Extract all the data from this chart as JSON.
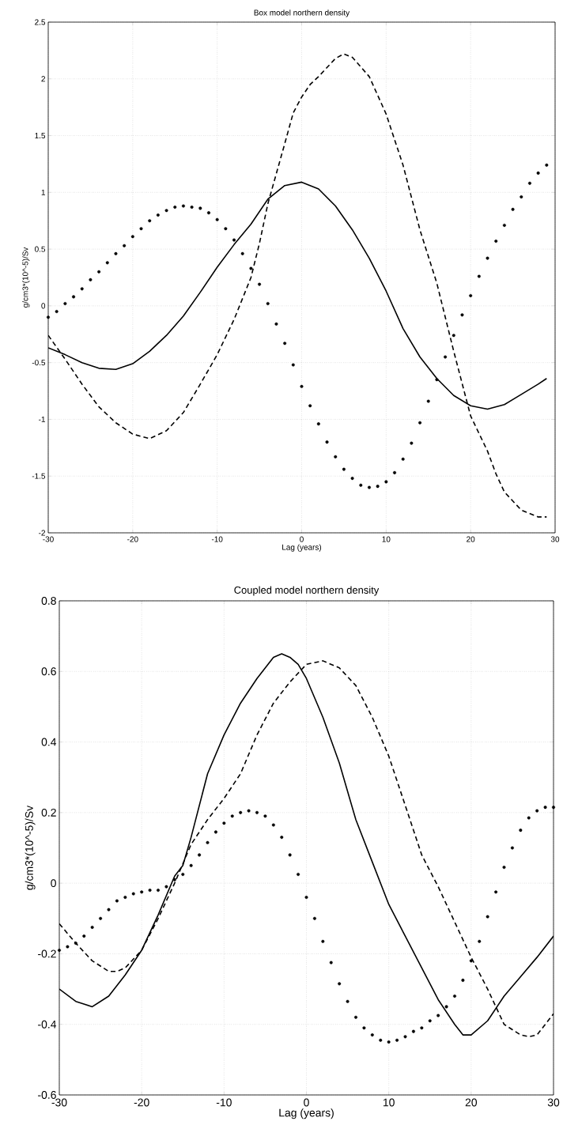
{
  "chart_data": [
    {
      "type": "line",
      "title": "Box model northern density",
      "xlabel": "Lag (years)",
      "ylabel": "g/cm3*(10^-5)/Sv",
      "xlim": [
        -30,
        30
      ],
      "ylim": [
        -2,
        2.5
      ],
      "xticks": [
        -30,
        -20,
        -10,
        0,
        10,
        20,
        30
      ],
      "yticks": [
        -2,
        -1.5,
        -1,
        -0.5,
        0,
        0.5,
        1,
        1.5,
        2,
        2.5
      ],
      "grid": true,
      "series": [
        {
          "line_style": "solid",
          "marker": "none",
          "color": "#000000",
          "x": [
            -30,
            -28,
            -26,
            -24,
            -22,
            -20,
            -18,
            -16,
            -14,
            -12,
            -10,
            -8,
            -6,
            -4,
            -2,
            0,
            2,
            4,
            6,
            8,
            10,
            12,
            14,
            16,
            18,
            20,
            22,
            24,
            26,
            28,
            29
          ],
          "values": [
            -0.37,
            -0.43,
            -0.5,
            -0.55,
            -0.56,
            -0.51,
            -0.4,
            -0.26,
            -0.09,
            0.12,
            0.34,
            0.54,
            0.72,
            0.94,
            1.06,
            1.09,
            1.03,
            0.88,
            0.67,
            0.42,
            0.13,
            -0.2,
            -0.45,
            -0.64,
            -0.79,
            -0.88,
            -0.91,
            -0.87,
            -0.78,
            -0.69,
            -0.64
          ]
        },
        {
          "line_style": "dashed",
          "marker": "none",
          "color": "#000000",
          "x": [
            -30,
            -28,
            -26,
            -24,
            -22,
            -20,
            -18,
            -16,
            -14,
            -12,
            -10,
            -8,
            -6,
            -5,
            -4,
            -2,
            -1,
            0,
            1,
            2,
            4,
            5,
            6,
            8,
            10,
            12,
            14,
            16,
            18,
            20,
            22,
            23,
            24,
            26,
            28,
            29
          ],
          "values": [
            -0.26,
            -0.47,
            -0.69,
            -0.89,
            -1.03,
            -1.13,
            -1.17,
            -1.1,
            -0.94,
            -0.69,
            -0.43,
            -0.12,
            0.25,
            0.55,
            0.9,
            1.43,
            1.7,
            1.84,
            1.95,
            2.02,
            2.18,
            2.22,
            2.19,
            2.02,
            1.69,
            1.24,
            0.67,
            0.2,
            -0.4,
            -0.97,
            -1.28,
            -1.48,
            -1.64,
            -1.8,
            -1.86,
            -1.86
          ]
        },
        {
          "type": "scatter",
          "marker": "circle",
          "color": "#000000",
          "x": [
            -30,
            -29,
            -28,
            -27,
            -26,
            -25,
            -24,
            -23,
            -22,
            -21,
            -20,
            -19,
            -18,
            -17,
            -16,
            -15,
            -14,
            -13,
            -12,
            -11,
            -10,
            -9,
            -8,
            -7,
            -6,
            -5,
            -4,
            -3,
            -2,
            -1,
            0,
            1,
            2,
            3,
            4,
            5,
            6,
            7,
            8,
            9,
            10,
            11,
            12,
            13,
            14,
            15,
            16,
            17,
            18,
            19,
            20,
            21,
            22,
            23,
            24,
            25,
            26,
            27,
            28,
            29
          ],
          "values": [
            -0.1,
            -0.05,
            0.02,
            0.08,
            0.15,
            0.23,
            0.3,
            0.38,
            0.46,
            0.53,
            0.61,
            0.68,
            0.75,
            0.8,
            0.84,
            0.87,
            0.88,
            0.87,
            0.86,
            0.82,
            0.76,
            0.68,
            0.58,
            0.46,
            0.33,
            0.19,
            0.02,
            -0.16,
            -0.33,
            -0.52,
            -0.71,
            -0.88,
            -1.04,
            -1.2,
            -1.33,
            -1.44,
            -1.52,
            -1.58,
            -1.6,
            -1.59,
            -1.55,
            -1.47,
            -1.35,
            -1.21,
            -1.03,
            -0.84,
            -0.65,
            -0.45,
            -0.26,
            -0.08,
            0.09,
            0.26,
            0.42,
            0.57,
            0.71,
            0.85,
            0.96,
            1.08,
            1.17,
            1.24
          ]
        }
      ]
    },
    {
      "type": "line",
      "title": "Coupled model northern density",
      "xlabel": "Lag (years)",
      "ylabel": "g/cm3*(10^-5)/Sv",
      "xlim": [
        -30,
        30
      ],
      "ylim": [
        -0.6,
        0.8
      ],
      "xticks": [
        -30,
        -20,
        -10,
        0,
        10,
        20,
        30
      ],
      "yticks": [
        -0.6,
        -0.4,
        -0.2,
        0,
        0.2,
        0.4,
        0.6,
        0.8
      ],
      "grid": true,
      "series": [
        {
          "line_style": "solid",
          "marker": "none",
          "color": "#000000",
          "x": [
            -30,
            -28,
            -26,
            -24,
            -22,
            -20,
            -18,
            -16,
            -15,
            -14,
            -12,
            -10,
            -8,
            -6,
            -4,
            -3,
            -2,
            -1,
            0,
            2,
            4,
            6,
            8,
            10,
            12,
            14,
            16,
            18,
            19,
            20,
            22,
            24,
            26,
            28,
            30
          ],
          "values": [
            -0.3,
            -0.335,
            -0.35,
            -0.32,
            -0.26,
            -0.19,
            -0.09,
            0.02,
            0.05,
            0.13,
            0.31,
            0.42,
            0.51,
            0.58,
            0.64,
            0.65,
            0.64,
            0.62,
            0.58,
            0.47,
            0.34,
            0.18,
            0.06,
            -0.06,
            -0.15,
            -0.24,
            -0.33,
            -0.4,
            -0.43,
            -0.43,
            -0.39,
            -0.32,
            -0.265,
            -0.21,
            -0.15
          ]
        },
        {
          "line_style": "dashed",
          "marker": "none",
          "color": "#000000",
          "x": [
            -30,
            -28,
            -26,
            -24,
            -23,
            -22,
            -20,
            -18,
            -16,
            -14,
            -12,
            -10,
            -8,
            -6,
            -4,
            -2,
            0,
            2,
            4,
            6,
            8,
            10,
            12,
            14,
            16,
            18,
            20,
            22,
            24,
            26,
            27,
            28,
            30
          ],
          "values": [
            -0.115,
            -0.17,
            -0.22,
            -0.25,
            -0.25,
            -0.24,
            -0.19,
            -0.1,
            0.0,
            0.11,
            0.18,
            0.24,
            0.31,
            0.42,
            0.51,
            0.57,
            0.62,
            0.63,
            0.61,
            0.56,
            0.47,
            0.36,
            0.22,
            0.08,
            -0.01,
            -0.11,
            -0.21,
            -0.3,
            -0.4,
            -0.43,
            -0.435,
            -0.43,
            -0.37
          ]
        },
        {
          "type": "scatter",
          "marker": "circle",
          "color": "#000000",
          "x": [
            -30,
            -29,
            -28,
            -27,
            -26,
            -25,
            -24,
            -23,
            -22,
            -21,
            -20,
            -19,
            -18,
            -17,
            -16,
            -15,
            -14,
            -13,
            -12,
            -11,
            -10,
            -9,
            -8,
            -7,
            -6,
            -5,
            -4,
            -3,
            -2,
            -1,
            0,
            1,
            2,
            3,
            4,
            5,
            6,
            7,
            8,
            9,
            10,
            11,
            12,
            13,
            14,
            15,
            16,
            17,
            18,
            19,
            20,
            21,
            22,
            23,
            24,
            25,
            26,
            27,
            28,
            29,
            30
          ],
          "values": [
            -0.19,
            -0.18,
            -0.17,
            -0.15,
            -0.125,
            -0.1,
            -0.075,
            -0.05,
            -0.04,
            -0.03,
            -0.025,
            -0.02,
            -0.02,
            -0.01,
            0.01,
            0.025,
            0.05,
            0.08,
            0.115,
            0.145,
            0.17,
            0.19,
            0.2,
            0.205,
            0.2,
            0.19,
            0.165,
            0.13,
            0.08,
            0.025,
            -0.04,
            -0.1,
            -0.165,
            -0.225,
            -0.285,
            -0.335,
            -0.38,
            -0.41,
            -0.43,
            -0.445,
            -0.45,
            -0.445,
            -0.435,
            -0.42,
            -0.41,
            -0.39,
            -0.375,
            -0.35,
            -0.32,
            -0.275,
            -0.22,
            -0.165,
            -0.095,
            -0.025,
            0.045,
            0.1,
            0.15,
            0.185,
            0.205,
            0.215,
            0.215
          ]
        }
      ]
    }
  ]
}
